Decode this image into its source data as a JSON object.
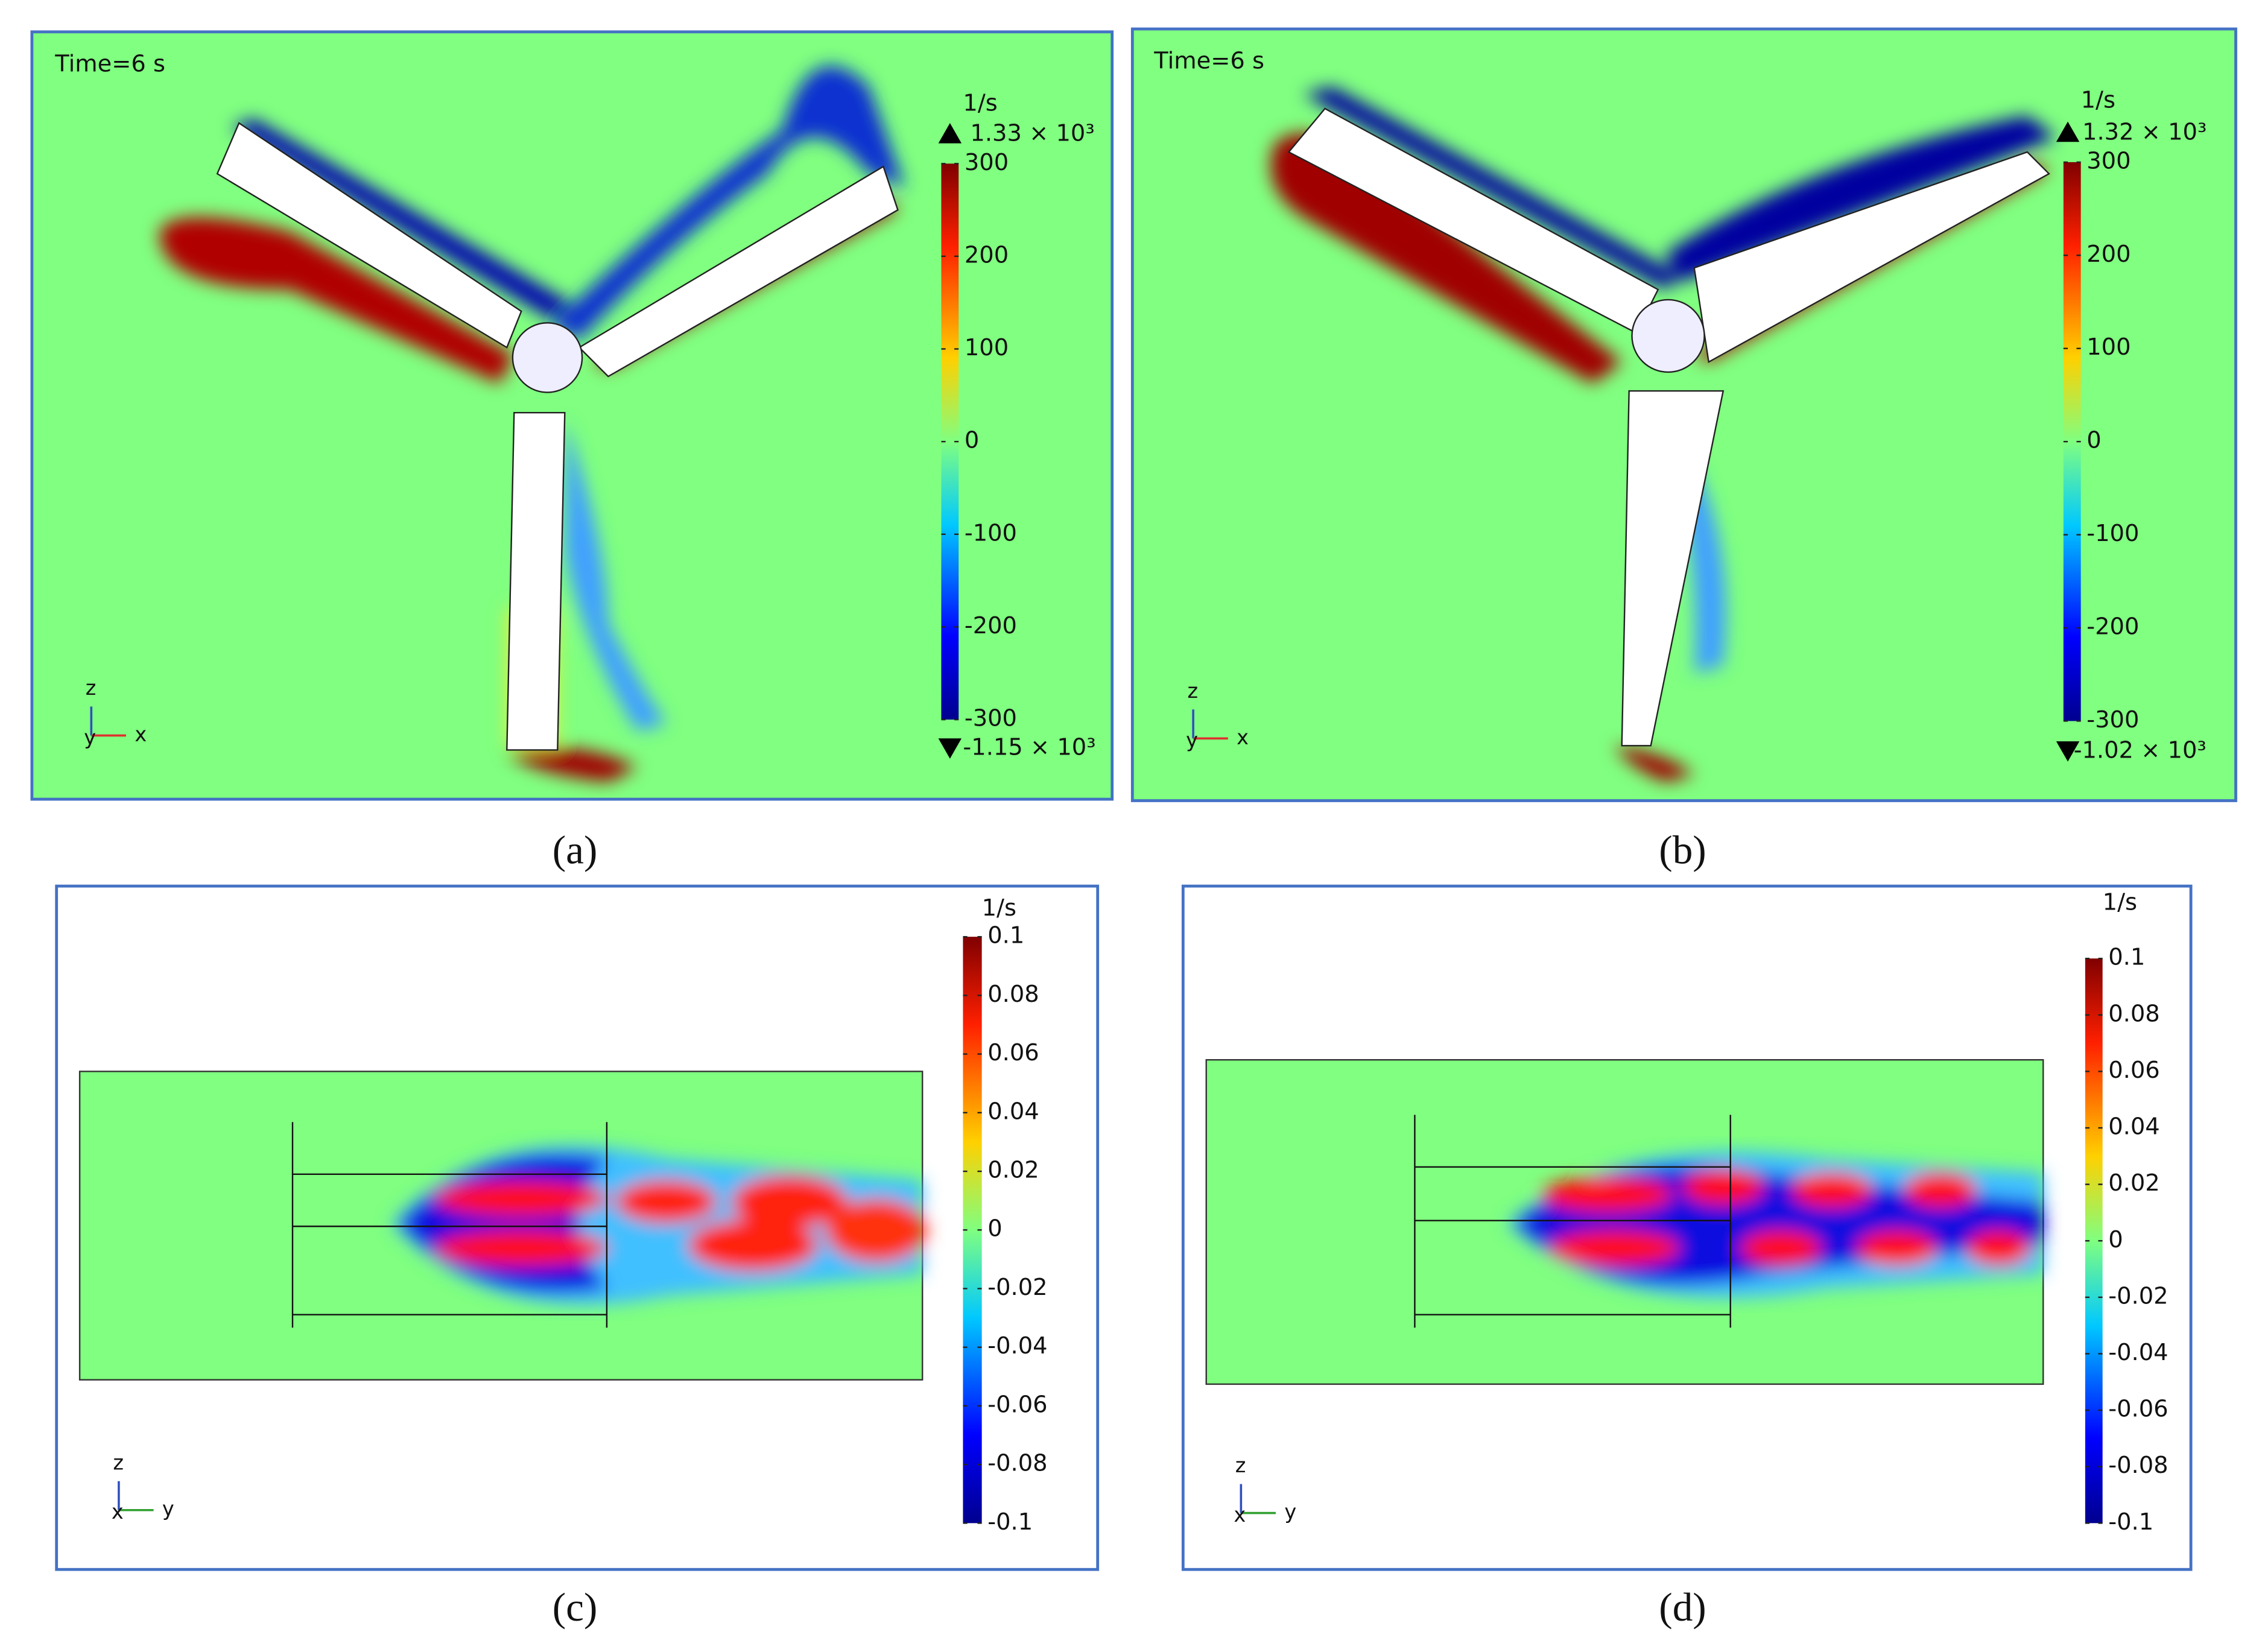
{
  "figure": {
    "panels": [
      {
        "label": "(a)",
        "time": "Time=6 s",
        "unit": "1/s",
        "max": {
          "value": 1330,
          "label": "1.33 × 10³"
        },
        "min": {
          "value": -1150,
          "label": "-1.15 × 10³"
        },
        "clim": [
          -300,
          300
        ],
        "cticks": [
          -300,
          -200,
          -100,
          0,
          100,
          200,
          300
        ],
        "axes": [
          "z",
          "y",
          "x"
        ]
      },
      {
        "label": "(b)",
        "time": "Time=6 s",
        "unit": "1/s",
        "max": {
          "value": 1320,
          "label": "1.32 × 10³"
        },
        "min": {
          "value": -1020,
          "label": "-1.02 × 10³"
        },
        "clim": [
          -300,
          300
        ],
        "cticks": [
          -300,
          -200,
          -100,
          0,
          100,
          200,
          300
        ],
        "axes": [
          "z",
          "y",
          "x"
        ]
      },
      {
        "label": "(c)",
        "unit": "1/s",
        "clim": [
          -0.1,
          0.1
        ],
        "cticks": [
          -0.1,
          -0.08,
          -0.06,
          -0.04,
          -0.02,
          0,
          0.02,
          0.04,
          0.06,
          0.08,
          0.1
        ],
        "axes": [
          "z",
          "x",
          "y"
        ]
      },
      {
        "label": "(d)",
        "unit": "1/s",
        "clim": [
          -0.1,
          0.1
        ],
        "cticks": [
          -0.1,
          -0.08,
          -0.06,
          -0.04,
          -0.02,
          0,
          0.02,
          0.04,
          0.06,
          0.08,
          0.1
        ],
        "axes": [
          "z",
          "x",
          "y"
        ]
      }
    ]
  }
}
